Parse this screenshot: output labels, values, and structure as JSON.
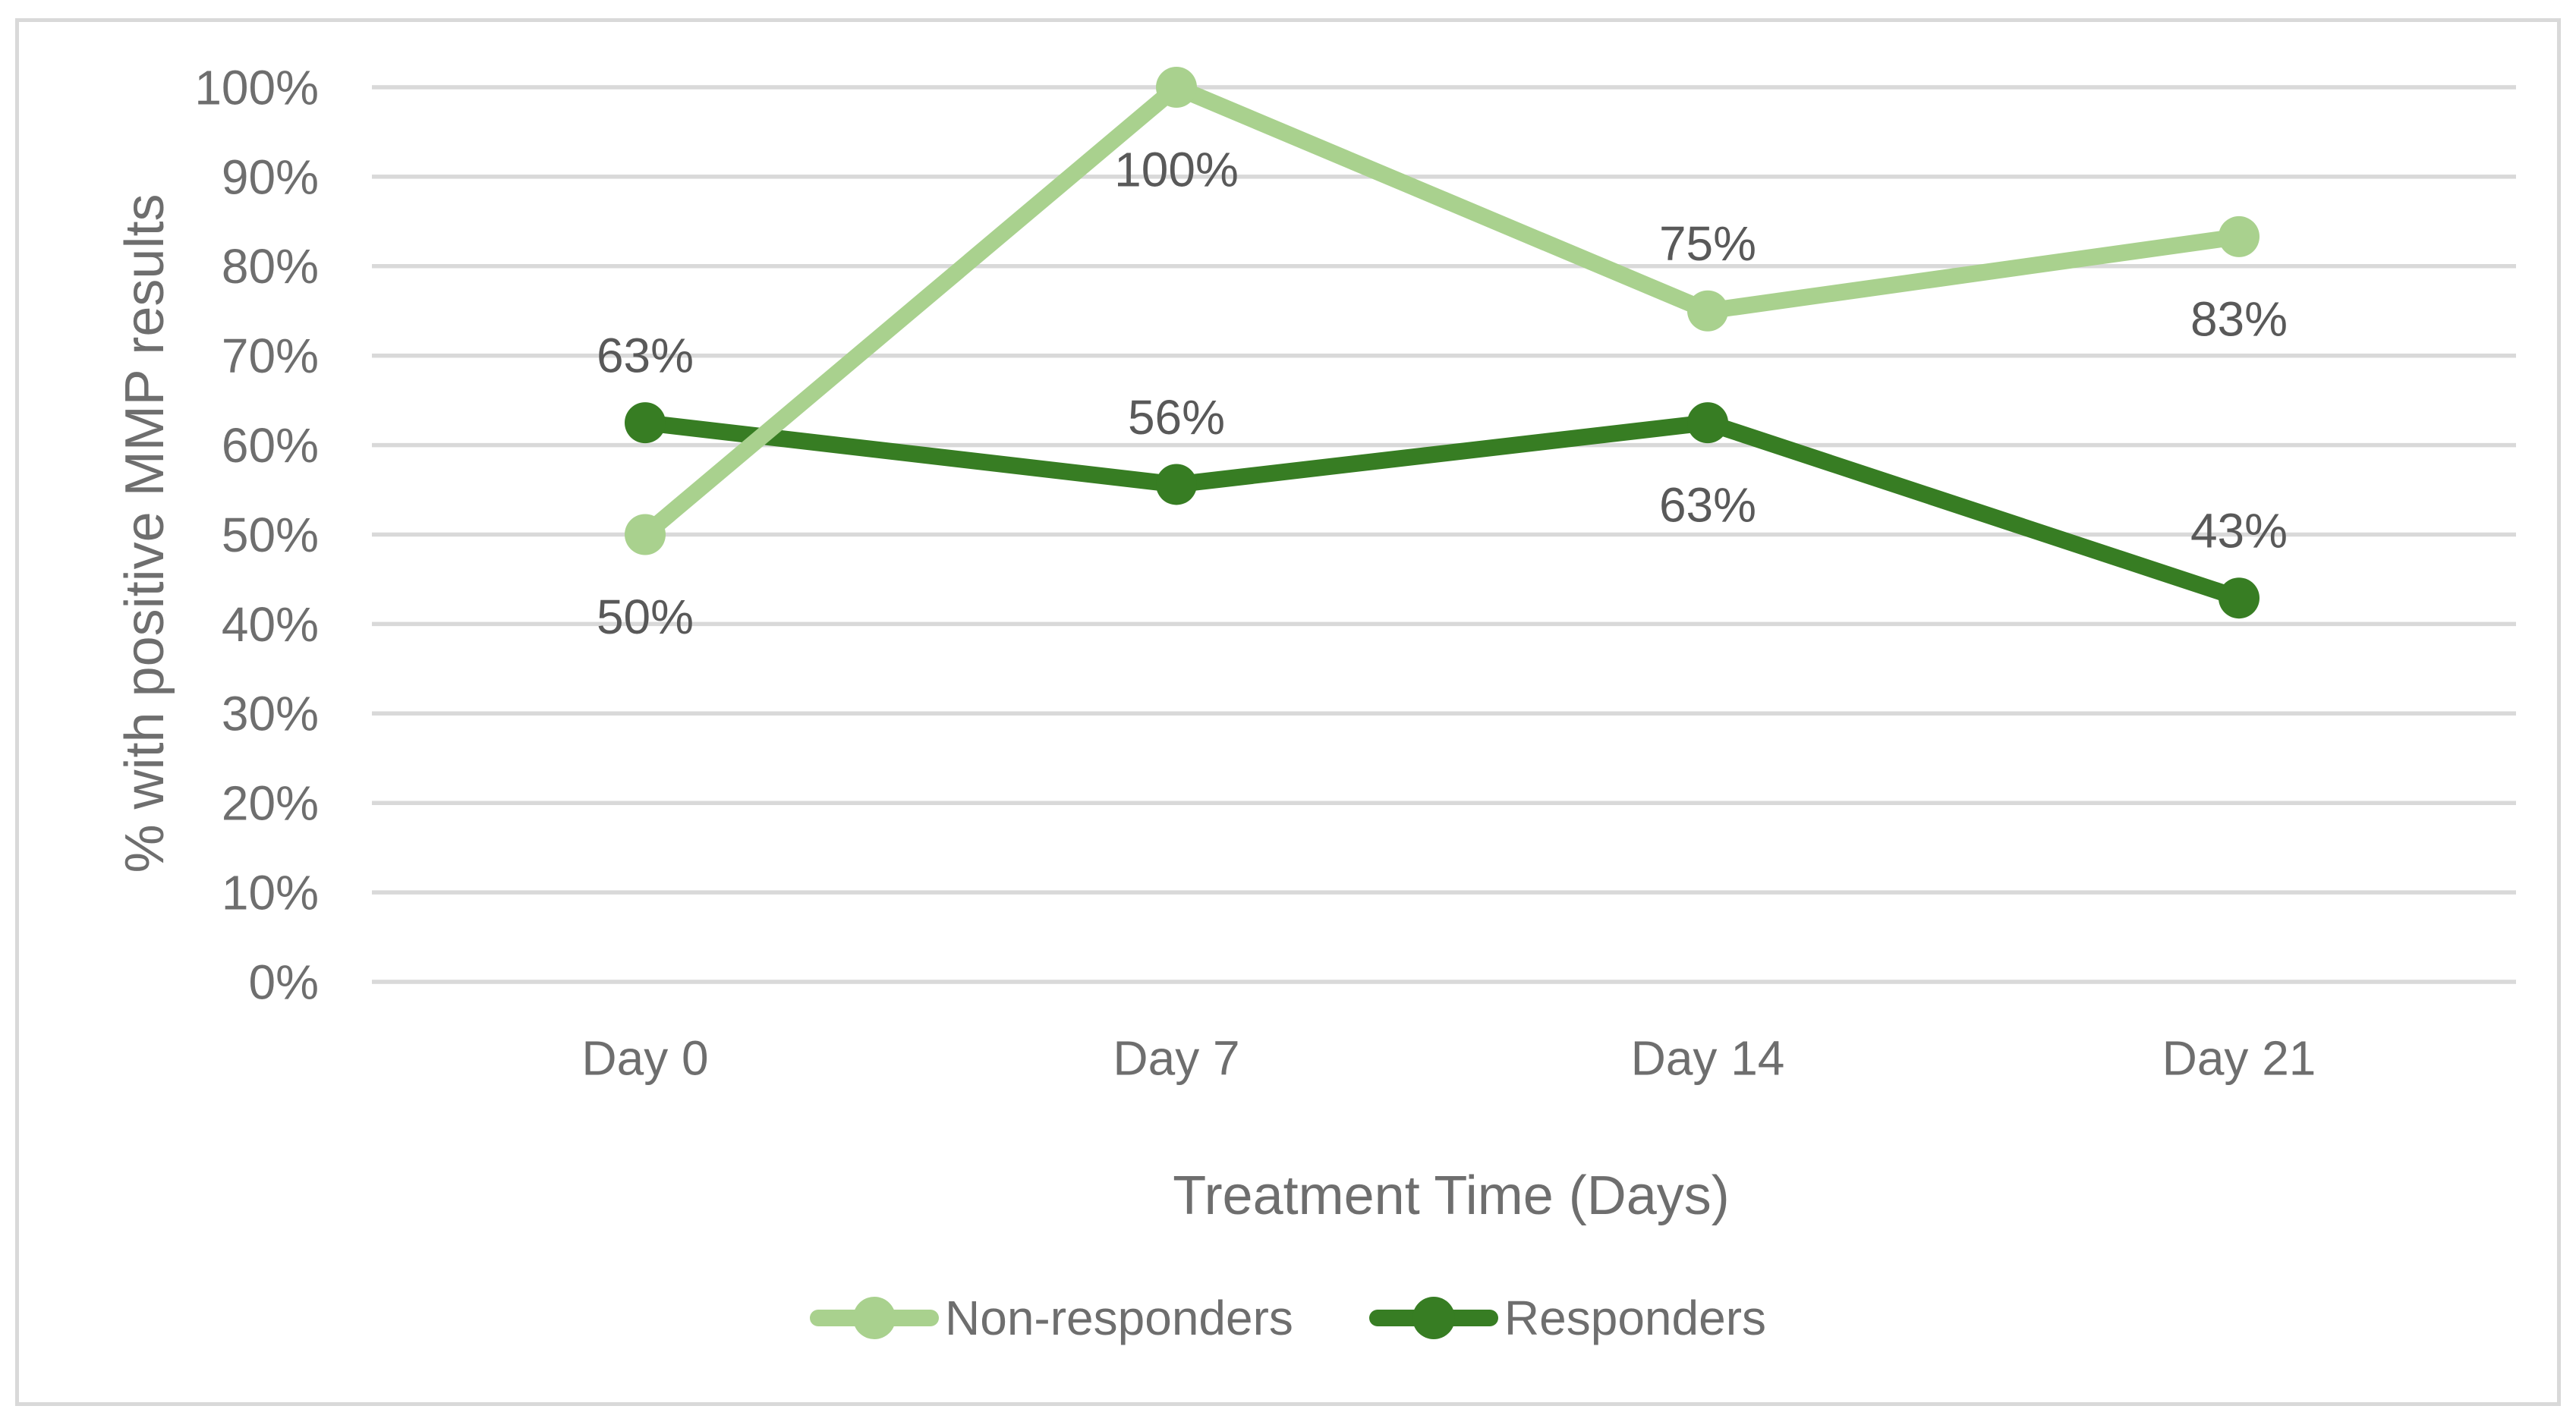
{
  "colors": {
    "background": "#ffffff",
    "frame_border": "#d9d9d9",
    "gridline": "#d9d9d9",
    "axis_text": "#6e6e6e",
    "data_label_text": "#595959",
    "non_responders": "#A9D18E",
    "responders": "#377D23"
  },
  "chart_data": {
    "type": "line",
    "title": "",
    "categories": [
      "Day 0",
      "Day 7",
      "Day 14",
      "Day 21"
    ],
    "xlabel": "Treatment Time (Days)",
    "ylabel": "% with positive MMP results",
    "ylim": [
      0,
      100
    ],
    "ytick_step": 10,
    "ytick_labels": [
      "0%",
      "10%",
      "20%",
      "30%",
      "40%",
      "50%",
      "60%",
      "70%",
      "80%",
      "90%",
      "100%"
    ],
    "grid": true,
    "legend_position": "bottom",
    "series": [
      {
        "name": "Non-responders",
        "color": "#A9D18E",
        "values": [
          50,
          100,
          75,
          83.3
        ],
        "labels": [
          "50%",
          "100%",
          "75%",
          "83%"
        ],
        "label_placement": [
          "below",
          "below",
          "above",
          "below"
        ]
      },
      {
        "name": "Responders",
        "color": "#377D23",
        "values": [
          62.5,
          55.6,
          62.5,
          42.9
        ],
        "labels": [
          "63%",
          "56%",
          "63%",
          "43%"
        ],
        "label_placement": [
          "above",
          "above",
          "below",
          "above"
        ]
      }
    ]
  }
}
